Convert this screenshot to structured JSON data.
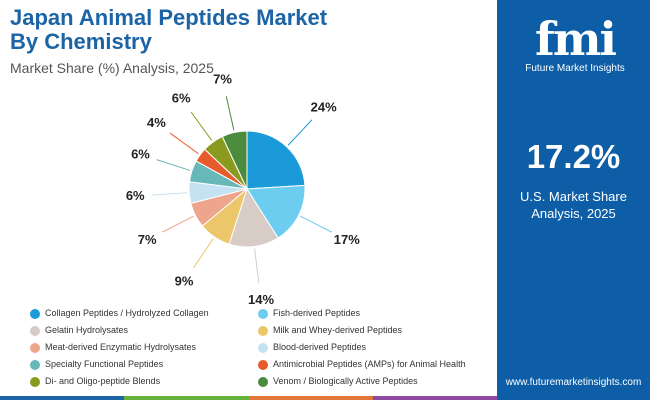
{
  "header": {
    "title_line1": "Japan Animal Peptides Market",
    "title_line2": "By Chemistry",
    "subtitle": "Market Share (%) Analysis, 2025"
  },
  "brand": {
    "logo_letters": "fmi",
    "logo_text": "Future Market Insights",
    "website": "www.futuremarketinsights.com",
    "panel_color": "#0d5ea6"
  },
  "highlight": {
    "value": "17.2%",
    "caption_line1": "U.S. Market Share",
    "caption_line2": "Analysis, 2025"
  },
  "chart_data": {
    "type": "pie",
    "title": "Japan Animal Peptides Market By Chemistry",
    "unit": "%",
    "categories": [
      "Collagen Peptides / Hydrolyzed Collagen",
      "Fish-derived Peptides",
      "Gelatin Hydrolysates",
      "Milk and Whey-derived Peptides",
      "Meat-derived Enzymatic Hydrolysates",
      "Blood-derived Peptides",
      "Specialty Functional Peptides",
      "Antimicrobial Peptides (AMPs) for Animal Health",
      "Di- and Oligo-peptide Blends",
      "Venom / Biologically Active Peptides"
    ],
    "values": [
      24,
      17,
      14,
      9,
      7,
      6,
      6,
      4,
      6,
      7
    ],
    "labels": [
      "24%",
      "17%",
      "14%",
      "9%",
      "7%",
      "6%",
      "6%",
      "4%",
      "6%",
      "7%"
    ],
    "colors": [
      "#1a9ad9",
      "#6dcdf0",
      "#d8ccc6",
      "#ecc76a",
      "#eda58e",
      "#c5e2f2",
      "#67b8b8",
      "#e65a2c",
      "#8a9a1e",
      "#4b8b3e"
    ],
    "start_angle_deg": 0,
    "direction": "clockwise",
    "legend_position": "bottom"
  }
}
